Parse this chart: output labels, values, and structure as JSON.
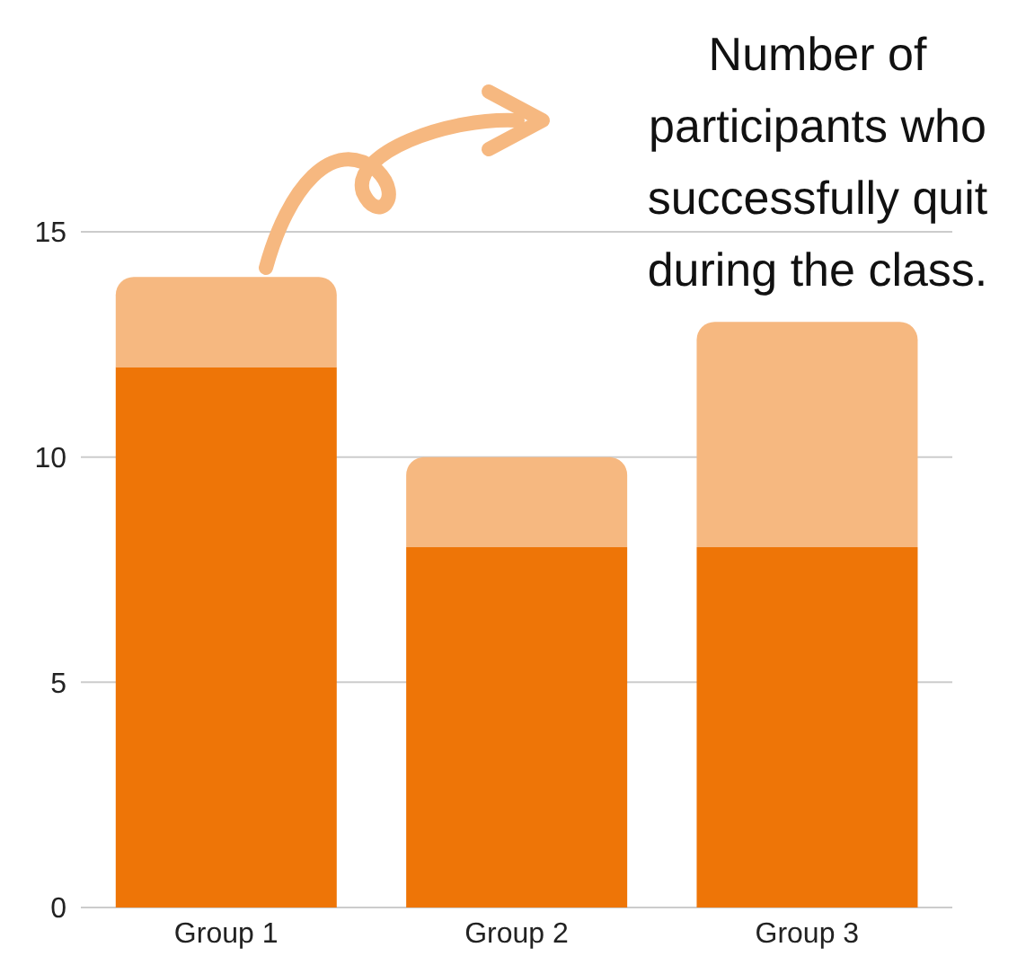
{
  "chart_data": {
    "type": "bar",
    "stacked": true,
    "categories": [
      "Group 1",
      "Group 2",
      "Group 3"
    ],
    "series": [
      {
        "color": "#ee7507",
        "values": [
          12,
          8,
          8
        ]
      },
      {
        "color": "#f6b880",
        "values": [
          2,
          2,
          5
        ]
      }
    ],
    "ylim": [
      0,
      15
    ],
    "yticks": [
      0,
      5,
      10,
      15
    ],
    "grid": "y",
    "annotations": [
      "Number of participants who successfully quit during the class."
    ]
  }
}
